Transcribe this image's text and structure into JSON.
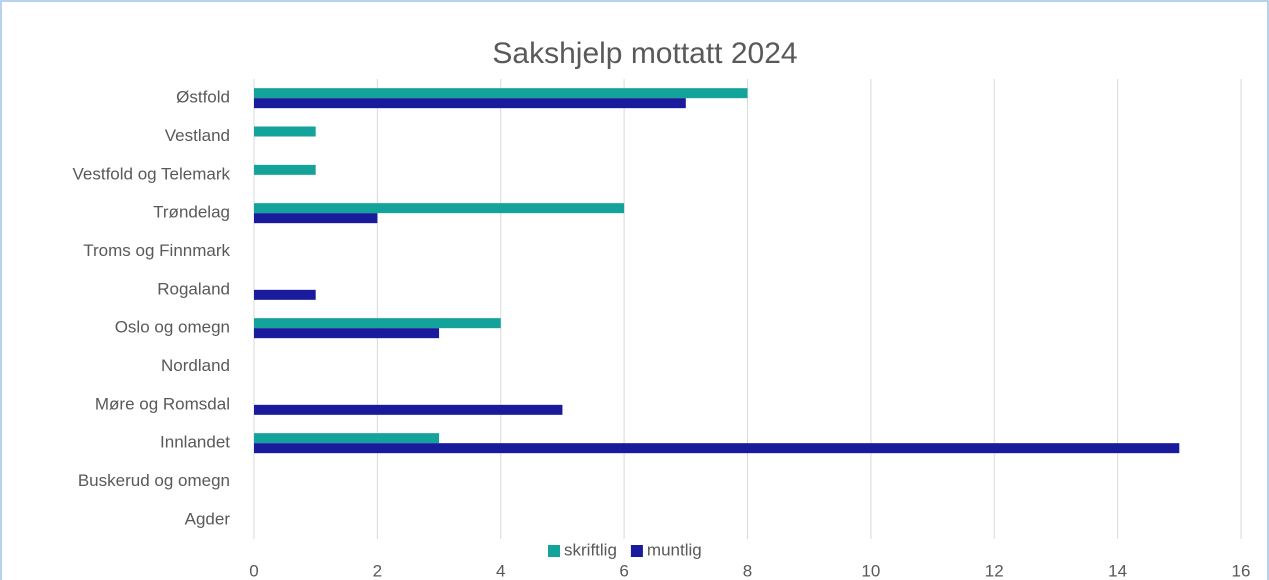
{
  "chart_data": {
    "type": "barh",
    "title": "Sakshjelp mottatt 2024",
    "categories": [
      "Østfold",
      "Vestland",
      "Vestfold og Telemark",
      "Trøndelag",
      "Troms og Finnmark",
      "Rogaland",
      "Oslo og omegn",
      "Nordland",
      "Møre og Romsdal",
      "Innlandet",
      "Buskerud og omegn",
      "Agder"
    ],
    "series": [
      {
        "name": "skriftlig",
        "color": "#14a39a",
        "values": [
          8,
          1,
          1,
          6,
          0,
          0,
          4,
          0,
          0,
          3,
          0,
          0
        ]
      },
      {
        "name": "muntlig",
        "color": "#1a1a9c",
        "values": [
          7,
          0,
          0,
          2,
          0,
          1,
          3,
          0,
          5,
          15,
          0,
          0
        ]
      }
    ],
    "xlim": [
      0,
      16
    ],
    "xticks": [
      0,
      2,
      4,
      6,
      8,
      10,
      12,
      14,
      16
    ],
    "grid": true,
    "legend": "bottom"
  }
}
